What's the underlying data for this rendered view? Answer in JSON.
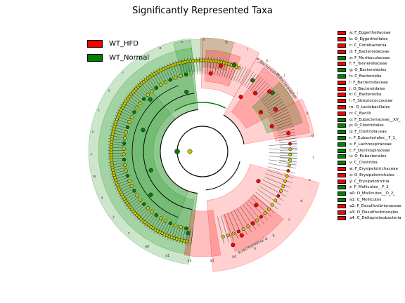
{
  "chart_data": {
    "type": "cladogram",
    "title": "Significantly Represented Taxa",
    "groups": [
      {
        "name": "WT_HFD",
        "color": "#ff0000"
      },
      {
        "name": "WT_Normal",
        "color": "#008000"
      }
    ],
    "taxa": [
      {
        "key": "a",
        "name": "F_Eggerthellaceae",
        "group": "WT_HFD"
      },
      {
        "key": "b",
        "name": "O_Eggerthellales",
        "group": "WT_HFD"
      },
      {
        "key": "c",
        "name": "C_Coriobacteriia",
        "group": "WT_HFD"
      },
      {
        "key": "d",
        "name": "F_Bacteroidaceae",
        "group": "WT_HFD"
      },
      {
        "key": "e",
        "name": "F_Muribaculaceae",
        "group": "WT_Normal"
      },
      {
        "key": "f",
        "name": "F_Tannerellaceae",
        "group": "WT_HFD"
      },
      {
        "key": "g",
        "name": "O_Bacteroidales",
        "group": "WT_Normal"
      },
      {
        "key": "h",
        "name": "C_Bacteroidia",
        "group": "WT_Normal"
      },
      {
        "key": "i",
        "name": "F_Bacteroidaceae",
        "group": "WT_HFD"
      },
      {
        "key": "j",
        "name": "O_Bacteroidales",
        "group": "WT_HFD"
      },
      {
        "key": "k",
        "name": "C_Bacteroidia",
        "group": "WT_HFD"
      },
      {
        "key": "l",
        "name": "F_Streptococcaceae",
        "group": "WT_HFD"
      },
      {
        "key": "m",
        "name": "O_Lactobacillales",
        "group": "WT_HFD"
      },
      {
        "key": "n",
        "name": "C_Bacilli",
        "group": "WT_HFD"
      },
      {
        "key": "o",
        "name": "F_Eubacteriaceae__XV_",
        "group": "WT_Normal"
      },
      {
        "key": "p",
        "name": "O_Clostridiales",
        "group": "WT_Normal"
      },
      {
        "key": "q",
        "name": "F_Clostridiaceae",
        "group": "WT_Normal"
      },
      {
        "key": "r",
        "name": "F_Eubacteriales__F_1_",
        "group": "WT_Normal"
      },
      {
        "key": "s",
        "name": "F_Lachnospiraceae",
        "group": "WT_Normal"
      },
      {
        "key": "t",
        "name": "F_Oscillospiraceae",
        "group": "WT_Normal"
      },
      {
        "key": "u",
        "name": "O_Eubacteriales",
        "group": "WT_Normal"
      },
      {
        "key": "v",
        "name": "C_Clostridia",
        "group": "WT_Normal"
      },
      {
        "key": "w",
        "name": "F_Erysipelotrichaceae",
        "group": "WT_HFD"
      },
      {
        "key": "x",
        "name": "O_Erysipelotrichales",
        "group": "WT_HFD"
      },
      {
        "key": "y",
        "name": "C_Erysipelotrichia",
        "group": "WT_HFD"
      },
      {
        "key": "z",
        "name": "F_Mollicutes__F_2_",
        "group": "WT_Normal"
      },
      {
        "key": "a0",
        "name": "O_Mollicutes__O_2_",
        "group": "WT_Normal"
      },
      {
        "key": "a1",
        "name": "C_Mollicutes",
        "group": "WT_Normal"
      },
      {
        "key": "a2",
        "name": "F_Desulfovibrionaceae",
        "group": "WT_HFD"
      },
      {
        "key": "a3",
        "name": "O_Desulfovibrionales",
        "group": "WT_HFD"
      },
      {
        "key": "a4",
        "name": "C_Deltaproteobacteria",
        "group": "WT_HFD"
      }
    ],
    "clade_labels": [
      {
        "text": "P_Bacteroidota",
        "group": "WT_HFD"
      },
      {
        "text": "P_Bacteroidetes",
        "group": "WT_Normal"
      },
      {
        "text": "P_Proteobacteria",
        "group": "WT_HFD"
      }
    ],
    "ring_labels": [
      "v",
      "u",
      "t",
      "s",
      "r",
      "q",
      "p",
      "o",
      "n",
      "m",
      "l",
      "k",
      "j",
      "i",
      "h",
      "g",
      "f",
      "e",
      "d",
      "c",
      "b",
      "a",
      "a4",
      "a3",
      "a2",
      "a1",
      "a0",
      "z",
      "y",
      "x",
      "w"
    ]
  }
}
